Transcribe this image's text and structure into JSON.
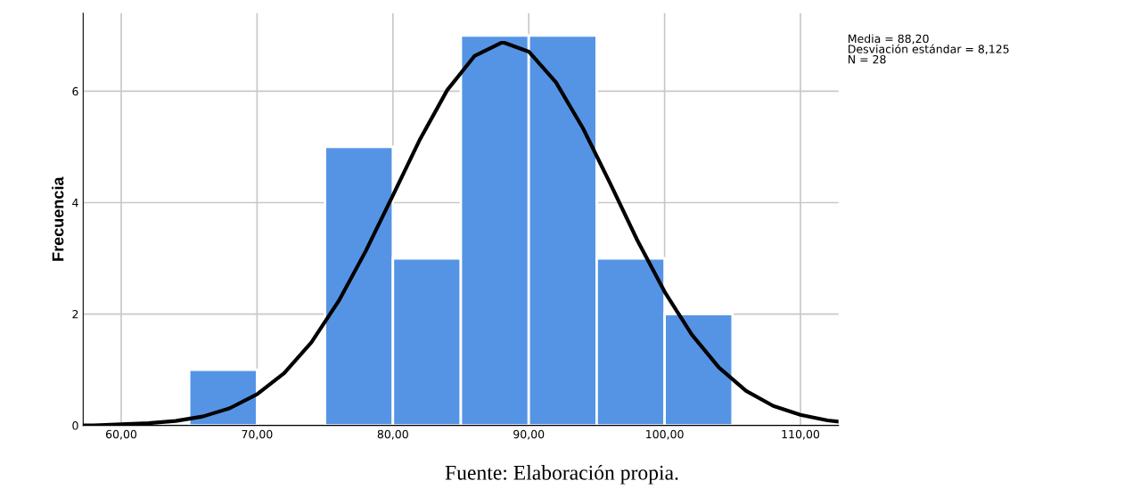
{
  "chart_data": {
    "type": "histogram",
    "ylabel": "Frecuencia",
    "bins": [
      65,
      70,
      75,
      80,
      85,
      90,
      95,
      100,
      105
    ],
    "values": [
      1,
      0,
      5,
      3,
      7,
      7,
      3,
      2
    ],
    "color": "#5594e4",
    "series": [
      {
        "type": "line",
        "color": "#000000",
        "x": [
          57.2,
          58,
          60,
          62,
          64,
          66,
          68,
          70,
          72,
          74,
          76,
          78,
          80,
          82,
          84,
          86,
          88,
          88.2,
          90,
          92,
          94,
          96,
          98,
          100,
          102,
          104,
          106,
          108,
          110,
          112,
          112.8
        ],
        "values": [
          0.0,
          0.0,
          0.02,
          0.04,
          0.08,
          0.16,
          0.31,
          0.56,
          0.94,
          1.49,
          2.23,
          3.13,
          4.13,
          5.14,
          6.02,
          6.63,
          6.87,
          6.87,
          6.71,
          6.16,
          5.33,
          4.34,
          3.32,
          2.4,
          1.63,
          1.04,
          0.62,
          0.35,
          0.19,
          0.09,
          0.07
        ]
      }
    ],
    "xlim": [
      57.2,
      112.8
    ],
    "xticks": [
      {
        "value": 60,
        "label": "60,00"
      },
      {
        "value": 70,
        "label": "70,00"
      },
      {
        "value": 80,
        "label": "80,00"
      },
      {
        "value": 90,
        "label": "90,00"
      },
      {
        "value": 100,
        "label": "100,00"
      },
      {
        "value": 110,
        "label": "110,00"
      }
    ],
    "ylim": [
      0,
      7.4
    ],
    "yticks": [
      0,
      2,
      4,
      6
    ],
    "grid": true,
    "annotations": [
      "Media = 88,20\nDesviación estándar = 8,125\nN = 28",
      "Fuente: Elaboración propia."
    ]
  }
}
